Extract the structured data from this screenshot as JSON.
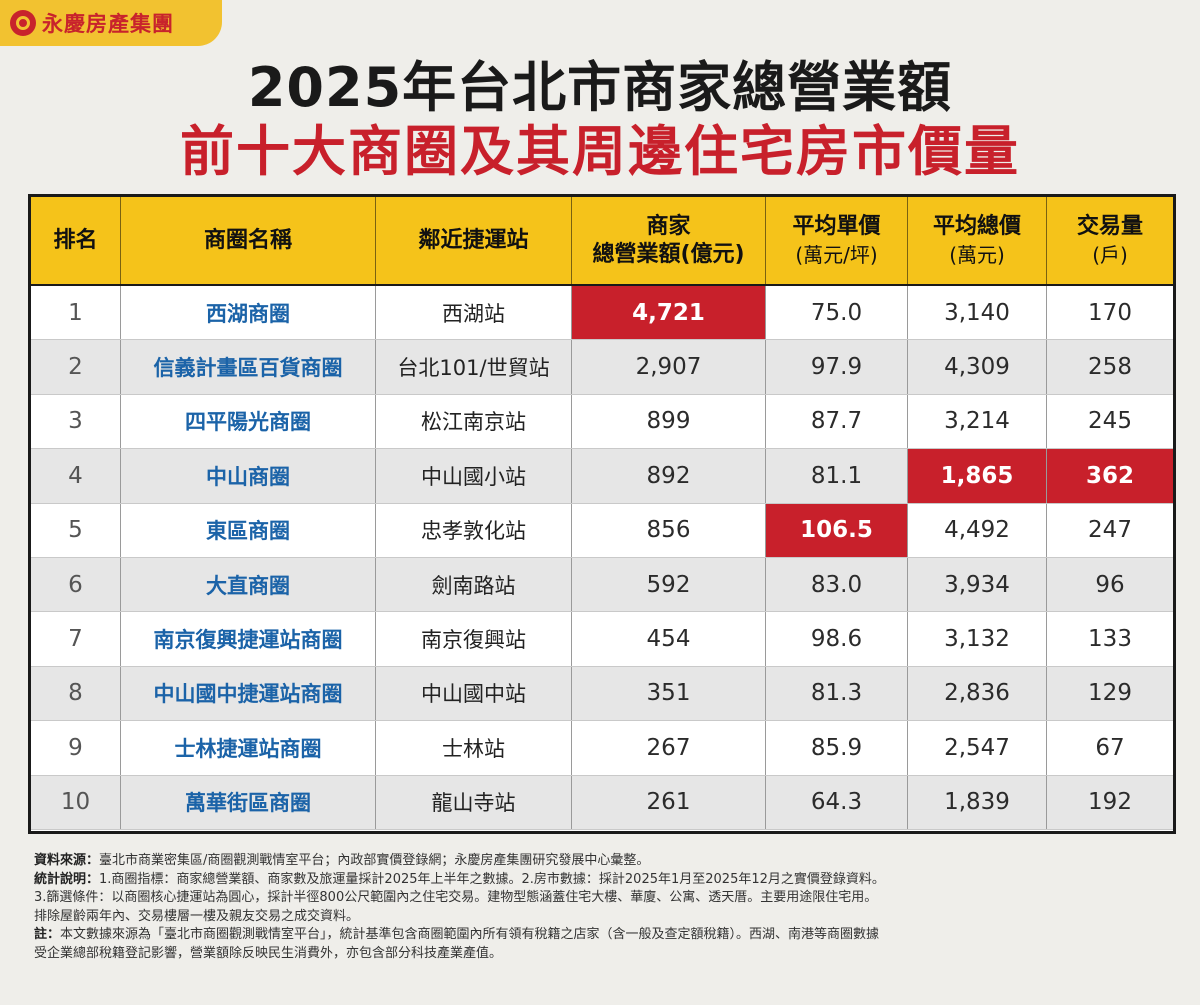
{
  "logo": {
    "text": "永慶房產集團"
  },
  "title_line1": "2025年台北市商家總營業額",
  "title_line2": "前十大商圈及其周邊住宅房市價量",
  "table": {
    "headers": [
      {
        "line1": "排名",
        "line2": ""
      },
      {
        "line1": "商圈名稱",
        "line2": ""
      },
      {
        "line1": "鄰近捷運站",
        "line2": ""
      },
      {
        "line1": "商家",
        "line2": "總營業額(億元)"
      },
      {
        "line1": "平均單價",
        "line2": "(萬元/坪)"
      },
      {
        "line1": "平均總價",
        "line2": "(萬元)"
      },
      {
        "line1": "交易量",
        "line2": "(戶)"
      }
    ],
    "rows": [
      {
        "rank": "1",
        "name": "西湖商圈",
        "station": "西湖站",
        "revenue": "4,721",
        "unit_price": "75.0",
        "total_price": "3,140",
        "volume": "170"
      },
      {
        "rank": "2",
        "name": "信義計畫區百貨商圈",
        "station": "台北101/世貿站",
        "revenue": "2,907",
        "unit_price": "97.9",
        "total_price": "4,309",
        "volume": "258"
      },
      {
        "rank": "3",
        "name": "四平陽光商圈",
        "station": "松江南京站",
        "revenue": "899",
        "unit_price": "87.7",
        "total_price": "3,214",
        "volume": "245"
      },
      {
        "rank": "4",
        "name": "中山商圈",
        "station": "中山國小站",
        "revenue": "892",
        "unit_price": "81.1",
        "total_price": "1,865",
        "volume": "362"
      },
      {
        "rank": "5",
        "name": "東區商圈",
        "station": "忠孝敦化站",
        "revenue": "856",
        "unit_price": "106.5",
        "total_price": "4,492",
        "volume": "247"
      },
      {
        "rank": "6",
        "name": "大直商圈",
        "station": "劍南路站",
        "revenue": "592",
        "unit_price": "83.0",
        "total_price": "3,934",
        "volume": "96"
      },
      {
        "rank": "7",
        "name": "南京復興捷運站商圈",
        "station": "南京復興站",
        "revenue": "454",
        "unit_price": "98.6",
        "total_price": "3,132",
        "volume": "133"
      },
      {
        "rank": "8",
        "name": "中山國中捷運站商圈",
        "station": "中山國中站",
        "revenue": "351",
        "unit_price": "81.3",
        "total_price": "2,836",
        "volume": "129"
      },
      {
        "rank": "9",
        "name": "士林捷運站商圈",
        "station": "士林站",
        "revenue": "267",
        "unit_price": "85.9",
        "total_price": "2,547",
        "volume": "67"
      },
      {
        "rank": "10",
        "name": "萬華街區商圈",
        "station": "龍山寺站",
        "revenue": "261",
        "unit_price": "64.3",
        "total_price": "1,839",
        "volume": "192"
      }
    ],
    "highlight_color": "#c8202b",
    "header_color": "#f5c31a"
  },
  "notes": {
    "source_label": "資料來源：",
    "source_text": "臺北市商業密集區/商圈觀測戰情室平台；內政部實價登錄網；永慶房產集團研究發展中心彙整。",
    "stat_label": "統計說明：",
    "stat_text": "1.商圈指標：商家總營業額、商家數及旅運量採計2025年上半年之數據。2.房市數據：採計2025年1月至2025年12月之實價登錄資料。",
    "stat_text2": "3.篩選條件：以商圈核心捷運站為圓心，採計半徑800公尺範圍內之住宅交易。建物型態涵蓋住宅大樓、華廈、公寓、透天厝。主要用途限住宅用。",
    "stat_text3": "排除屋齡兩年內、交易樓層一樓及親友交易之成交資料。",
    "note_label": "註：",
    "note_text": "本文數據來源為「臺北市商圈觀測戰情室平台」，統計基準包含商圈範圍內所有領有稅籍之店家（含一般及查定額稅籍）。西湖、南港等商圈數據",
    "note_text2": "受企業總部稅籍登記影響，營業額除反映民生消費外，亦包含部分科技產業產值。"
  },
  "chart_data": {
    "type": "table",
    "title": "2025年台北市商家總營業額 前十大商圈及其周邊住宅房市價量",
    "columns": [
      "排名",
      "商圈名稱",
      "鄰近捷運站",
      "商家總營業額(億元)",
      "平均單價(萬元/坪)",
      "平均總價(萬元)",
      "交易量(戶)"
    ],
    "categories": [
      "西湖商圈",
      "信義計畫區百貨商圈",
      "四平陽光商圈",
      "中山商圈",
      "東區商圈",
      "大直商圈",
      "南京復興捷運站商圈",
      "中山國中捷運站商圈",
      "士林捷運站商圈",
      "萬華街區商圈"
    ],
    "series": [
      {
        "name": "商家總營業額(億元)",
        "values": [
          4721,
          2907,
          899,
          892,
          856,
          592,
          454,
          351,
          267,
          261
        ]
      },
      {
        "name": "平均單價(萬元/坪)",
        "values": [
          75.0,
          97.9,
          87.7,
          81.1,
          106.5,
          83.0,
          98.6,
          81.3,
          85.9,
          64.3
        ]
      },
      {
        "name": "平均總價(萬元)",
        "values": [
          3140,
          4309,
          3214,
          1865,
          4492,
          3934,
          3132,
          2836,
          2547,
          1839
        ]
      },
      {
        "name": "交易量(戶)",
        "values": [
          170,
          258,
          245,
          362,
          247,
          96,
          133,
          129,
          67,
          192
        ]
      }
    ],
    "highlighted": [
      {
        "row": 0,
        "column": "商家總營業額(億元)"
      },
      {
        "row": 4,
        "column": "平均單價(萬元/坪)"
      },
      {
        "row": 3,
        "column": "平均總價(萬元)"
      },
      {
        "row": 3,
        "column": "交易量(戶)"
      }
    ]
  }
}
